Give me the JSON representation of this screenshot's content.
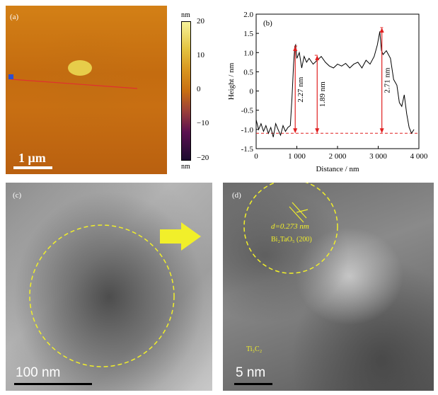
{
  "panel_a": {
    "label": "(a)",
    "scale_text": "1 μm",
    "colorbar": {
      "unit_top": "nm",
      "unit_bottom": "nm",
      "ticks": [
        "20",
        "10",
        "0",
        "−10",
        "−20"
      ]
    },
    "marker_color": "#e03030"
  },
  "panel_b": {
    "label": "(b)",
    "annotations": [
      "2.27 nm",
      "1.89 nm",
      "2.71 nm"
    ]
  },
  "panel_c": {
    "label": "(c)",
    "scale_text": "100 nm"
  },
  "panel_d": {
    "label": "(d)",
    "d_spacing": "d=0.273 nm",
    "phase": "Bi₂TaO₅ (200)",
    "region": "Ti₃C₂"
  },
  "colors": {
    "annotation": "#e02020",
    "highlight": "#f1ef2a"
  },
  "chart_data": {
    "type": "line",
    "title": "",
    "xlabel": "Distance / nm",
    "ylabel": "Height / nm",
    "xlim": [
      0,
      4000
    ],
    "ylim": [
      -1.5,
      2.0
    ],
    "x_ticks": [
      "0",
      "1 000",
      "2 000",
      "3 000",
      "4 000"
    ],
    "y_ticks": [
      "2.0",
      "1.5",
      "1.0",
      "0.5",
      "0",
      "-0.5",
      "-1.0",
      "-1.5"
    ],
    "series": [
      {
        "name": "",
        "x": [
          0,
          60,
          120,
          180,
          240,
          300,
          360,
          420,
          480,
          540,
          600,
          660,
          720,
          780,
          840,
          880,
          920,
          950,
          970,
          1000,
          1060,
          1120,
          1180,
          1240,
          1300,
          1400,
          1500,
          1600,
          1700,
          1800,
          1900,
          2000,
          2100,
          2200,
          2300,
          2400,
          2500,
          2600,
          2700,
          2800,
          2900,
          2980,
          3040,
          3080,
          3120,
          3200,
          3300,
          3380,
          3460,
          3520,
          3580,
          3640,
          3700,
          3760,
          3820,
          3880
        ],
        "y": [
          -0.75,
          -1.0,
          -0.85,
          -1.05,
          -0.9,
          -1.1,
          -0.95,
          -1.2,
          -0.85,
          -1.0,
          -1.15,
          -0.9,
          -1.05,
          -0.95,
          -0.9,
          -0.2,
          0.7,
          1.15,
          1.2,
          0.85,
          1.0,
          0.6,
          0.9,
          0.75,
          0.85,
          0.7,
          0.8,
          0.9,
          0.75,
          0.65,
          0.6,
          0.7,
          0.65,
          0.72,
          0.6,
          0.7,
          0.75,
          0.6,
          0.8,
          0.7,
          0.9,
          1.2,
          1.55,
          1.05,
          0.95,
          1.05,
          0.85,
          0.3,
          0.15,
          -0.3,
          -0.4,
          -0.1,
          -0.6,
          -0.95,
          -1.1,
          -1.0
        ]
      }
    ],
    "reference_lines": {
      "baseline_y": -1.1,
      "upper_y": [
        1.17,
        0.93,
        1.65
      ]
    },
    "grid": false
  }
}
